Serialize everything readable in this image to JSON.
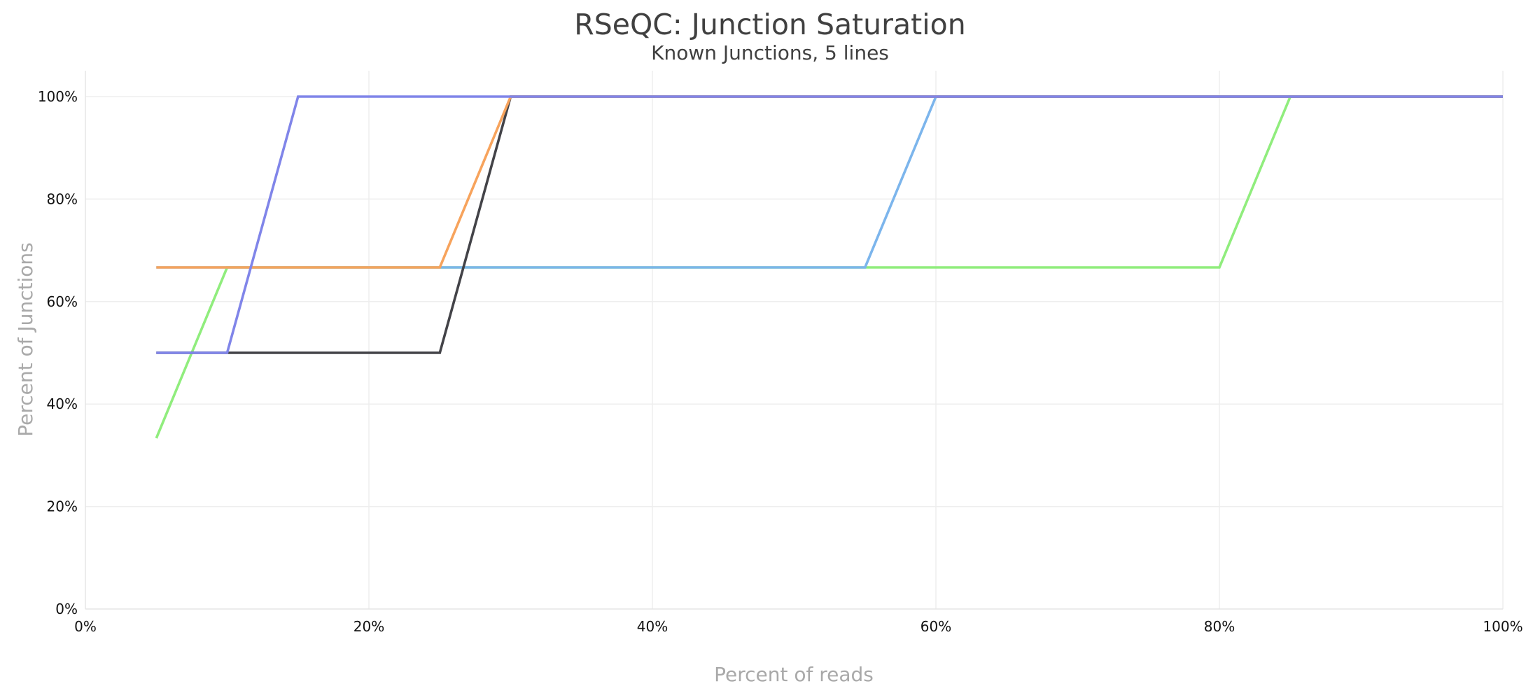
{
  "chart_data": {
    "type": "line",
    "title": "RSeQC: Junction Saturation",
    "subtitle": "Known Junctions, 5 lines",
    "xlabel": "Percent of reads",
    "ylabel": "Percent of Junctions",
    "xlim": [
      0,
      100
    ],
    "ylim": [
      0,
      100
    ],
    "xticks": [
      0,
      20,
      40,
      60,
      80,
      100
    ],
    "yticks": [
      0,
      20,
      40,
      60,
      80,
      100
    ],
    "tick_format": "{v}%",
    "grid": true,
    "legend": "none",
    "series": [
      {
        "color": "#90ed7d",
        "x": [
          5,
          10,
          15,
          20,
          25,
          30,
          35,
          40,
          45,
          50,
          55,
          60,
          65,
          70,
          75,
          80,
          85,
          90,
          95,
          100
        ],
        "y": [
          33.33,
          66.67,
          66.67,
          66.67,
          66.67,
          66.67,
          66.67,
          66.67,
          66.67,
          66.67,
          66.67,
          66.67,
          66.67,
          66.67,
          66.67,
          66.67,
          100,
          100,
          100,
          100
        ]
      },
      {
        "color": "#7cb5ec",
        "x": [
          5,
          10,
          15,
          20,
          25,
          30,
          35,
          40,
          45,
          50,
          55,
          60,
          65,
          70,
          75,
          80,
          85,
          90,
          95,
          100
        ],
        "y": [
          66.67,
          66.67,
          66.67,
          66.67,
          66.67,
          66.67,
          66.67,
          66.67,
          66.67,
          66.67,
          66.67,
          100,
          100,
          100,
          100,
          100,
          100,
          100,
          100,
          100
        ]
      },
      {
        "color": "#434348",
        "x": [
          5,
          10,
          15,
          20,
          25,
          30,
          35,
          40,
          45,
          50,
          55,
          60,
          65,
          70,
          75,
          80,
          85,
          90,
          95,
          100
        ],
        "y": [
          50,
          50,
          50,
          50,
          50,
          100,
          100,
          100,
          100,
          100,
          100,
          100,
          100,
          100,
          100,
          100,
          100,
          100,
          100,
          100
        ]
      },
      {
        "color": "#f7a35c",
        "x": [
          5,
          10,
          15,
          20,
          25,
          30,
          35,
          40,
          45,
          50,
          55,
          60,
          65,
          70,
          75,
          80,
          85,
          90,
          95,
          100
        ],
        "y": [
          66.67,
          66.67,
          66.67,
          66.67,
          66.67,
          100,
          100,
          100,
          100,
          100,
          100,
          100,
          100,
          100,
          100,
          100,
          100,
          100,
          100,
          100
        ]
      },
      {
        "color": "#8085e9",
        "x": [
          5,
          10,
          15,
          20,
          25,
          30,
          35,
          40,
          45,
          50,
          55,
          60,
          65,
          70,
          75,
          80,
          85,
          90,
          95,
          100
        ],
        "y": [
          50,
          50,
          100,
          100,
          100,
          100,
          100,
          100,
          100,
          100,
          100,
          100,
          100,
          100,
          100,
          100,
          100,
          100,
          100,
          100
        ]
      }
    ]
  }
}
